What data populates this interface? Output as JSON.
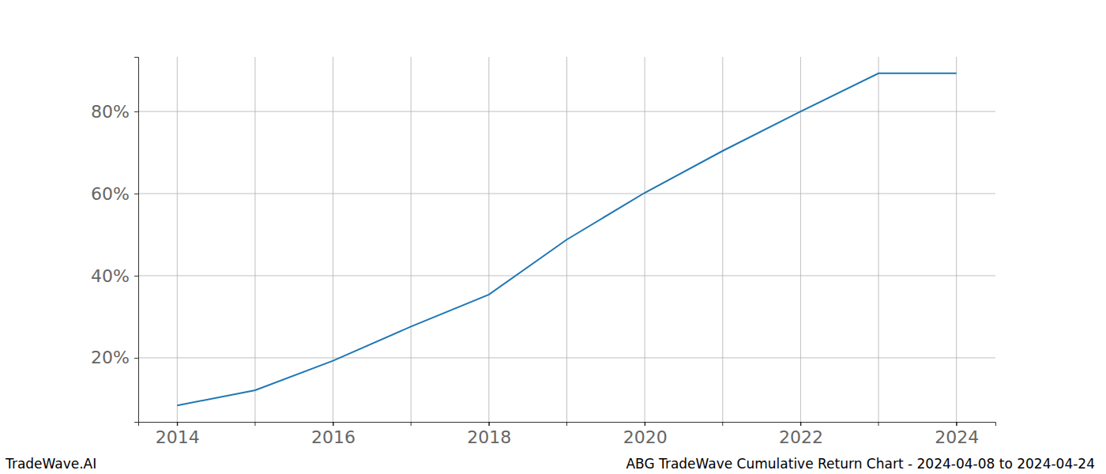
{
  "chart_data": {
    "type": "line",
    "title": "ABG TradeWave Cumulative Return Chart - 2024-04-08 to 2024-04-24",
    "annotations": [
      "TradeWave.AI"
    ],
    "x": [
      2014,
      2015,
      2016,
      2017,
      2018,
      2019,
      2020,
      2021,
      2022,
      2023,
      2024
    ],
    "values": [
      8.4,
      12.1,
      19.3,
      27.6,
      35.4,
      48.8,
      60.2,
      70.4,
      80.0,
      89.3,
      89.3
    ],
    "color": "#1f77b4",
    "xlim": [
      2013.5,
      2024.5
    ],
    "xticks": [
      2014,
      2016,
      2018,
      2020,
      2022,
      2024
    ],
    "ylim": [
      4.4,
      93.3
    ],
    "yticks": [
      {
        "value": 20,
        "label": "20%"
      },
      {
        "value": 40,
        "label": "40%"
      },
      {
        "value": 60,
        "label": "60%"
      },
      {
        "value": 80,
        "label": "80%"
      }
    ],
    "grid": true
  }
}
